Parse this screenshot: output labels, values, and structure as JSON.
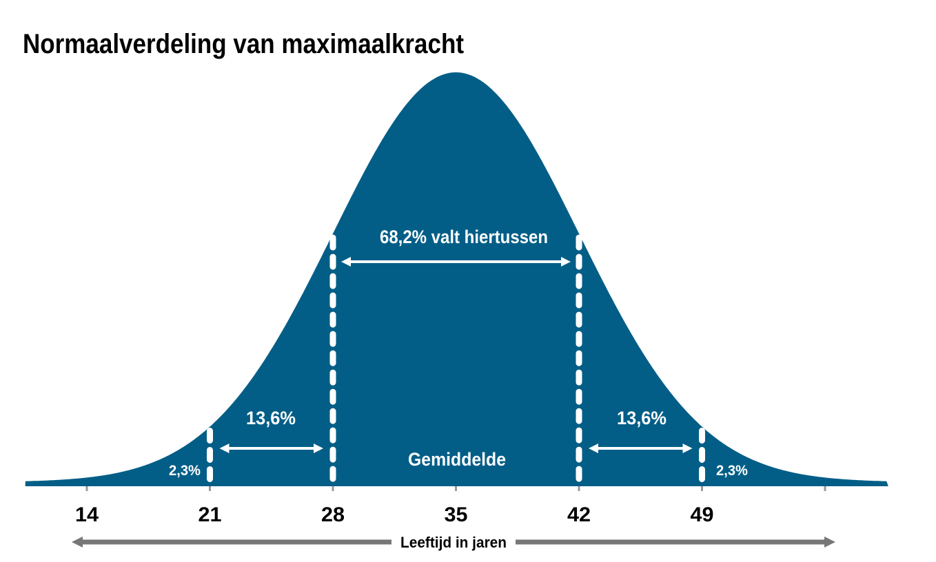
{
  "chart_data": {
    "type": "area",
    "title": "Normaalverdeling van maximaalkracht",
    "xlabel": "Leeftijd in jaren",
    "ylabel": "",
    "distribution": {
      "mean": 35,
      "sd": 7
    },
    "xlim": [
      10.5,
      59.6
    ],
    "x_ticks": [
      14,
      21,
      28,
      35,
      42,
      49,
      56
    ],
    "x_tick_labels": [
      "14",
      "21",
      "28",
      "35",
      "42",
      "49",
      ""
    ],
    "grid": false,
    "fill_color": "#035e87",
    "dividers": [
      21,
      28,
      42,
      49
    ],
    "annotations": {
      "center": "68,2% valt hiertussen",
      "left_mid": "13,6%",
      "right_mid": "13,6%",
      "left_tail": "2,3%",
      "right_tail": "2,3%",
      "mean_label": "Gemiddelde"
    }
  }
}
